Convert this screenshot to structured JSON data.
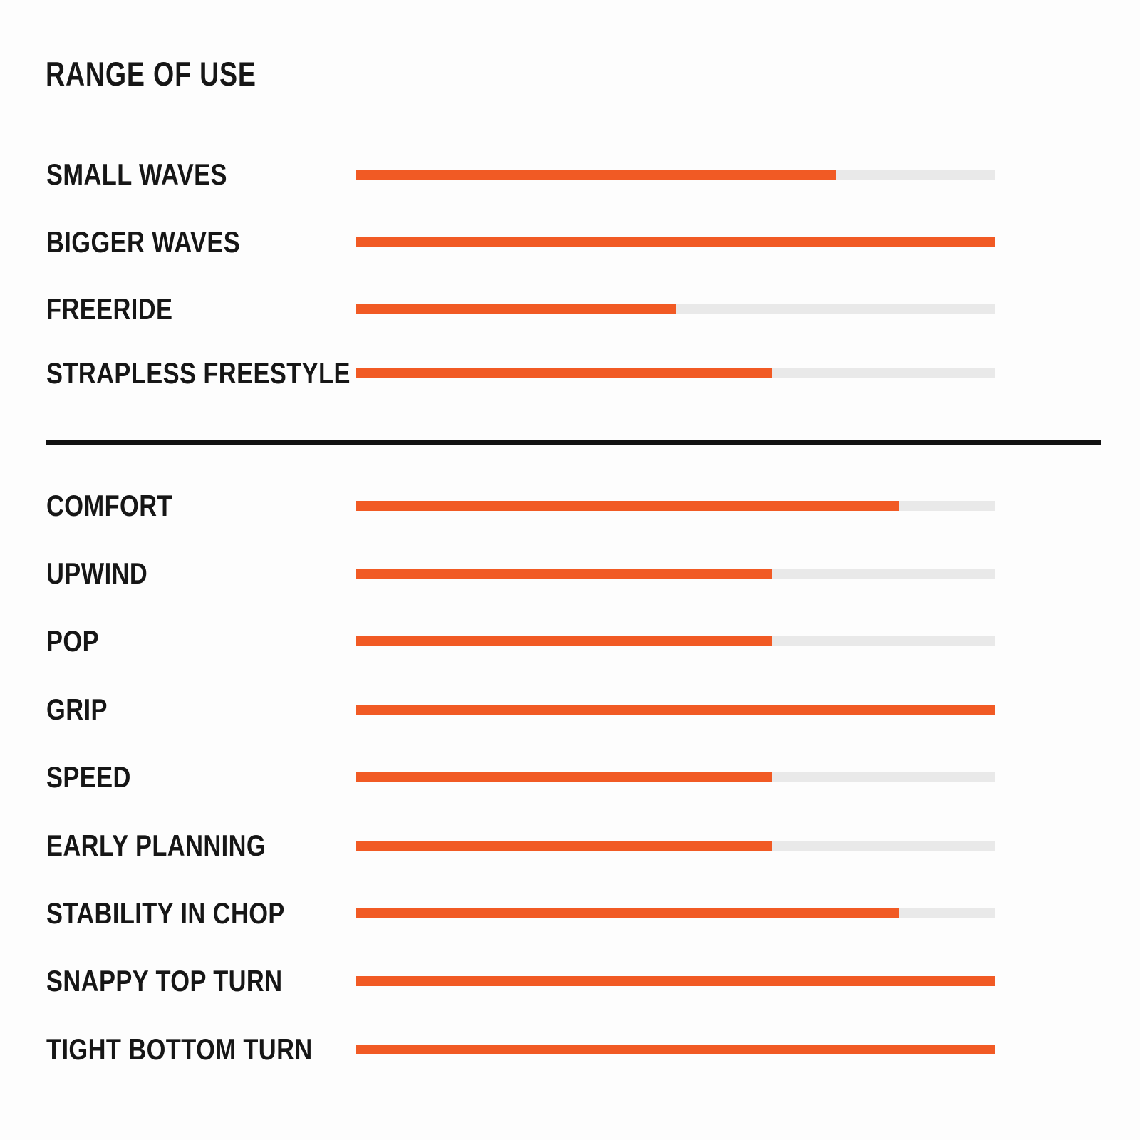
{
  "page": {
    "title": "RANGE OF USE"
  },
  "colors": {
    "background": "#fdfdfd",
    "text": "#161616",
    "divider": "#121212",
    "bar_fill": "#f15a24",
    "bar_track": "#e9e9e9"
  },
  "chart_data": {
    "type": "bar",
    "orientation": "horizontal",
    "title": "RANGE OF USE",
    "xlabel": "",
    "ylabel": "",
    "value_scale": {
      "min": 0,
      "max": 10
    },
    "grid": false,
    "legend": false,
    "groups": [
      {
        "name": "range-of-use",
        "rows": [
          {
            "label": "SMALL WAVES",
            "value": 7.5,
            "percent": 75
          },
          {
            "label": "BIGGER WAVES",
            "value": 10,
            "percent": 100
          },
          {
            "label": "FREERIDE",
            "value": 5,
            "percent": 50
          },
          {
            "label": "STRAPLESS FREESTYLE",
            "value": 6.5,
            "percent": 65
          }
        ]
      },
      {
        "name": "performance",
        "rows": [
          {
            "label": "COMFORT",
            "value": 8.5,
            "percent": 85
          },
          {
            "label": "UPWIND",
            "value": 6.5,
            "percent": 65
          },
          {
            "label": "POP",
            "value": 6.5,
            "percent": 65
          },
          {
            "label": "GRIP",
            "value": 10,
            "percent": 100
          },
          {
            "label": "SPEED",
            "value": 6.5,
            "percent": 65
          },
          {
            "label": "EARLY PLANNING",
            "value": 6.5,
            "percent": 65
          },
          {
            "label": "STABILITY IN CHOP",
            "value": 8.5,
            "percent": 85
          },
          {
            "label": "SNAPPY TOP TURN",
            "value": 10,
            "percent": 100
          },
          {
            "label": "TIGHT BOTTOM TURN",
            "value": 10,
            "percent": 100
          }
        ]
      }
    ]
  }
}
